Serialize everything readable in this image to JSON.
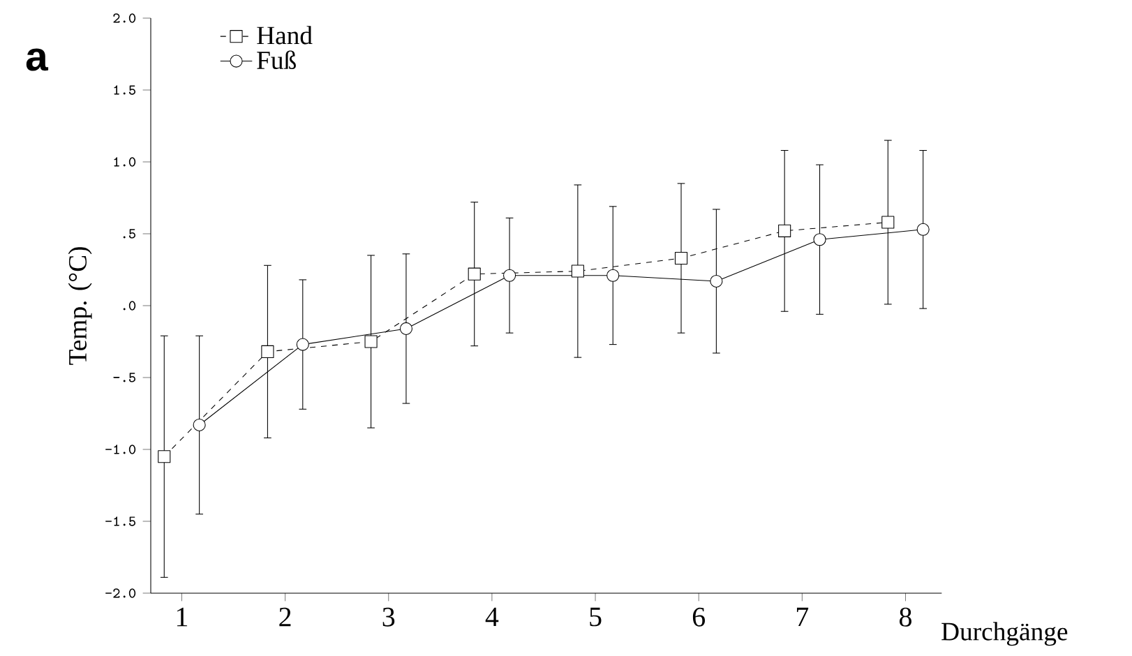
{
  "chart_data": {
    "type": "line",
    "xlabel": "Durchgänge",
    "ylabel": "Temp. (°C)",
    "annotations": [
      "a"
    ],
    "xlim": [
      0.7,
      8.35
    ],
    "ylim": [
      -2.0,
      2.0
    ],
    "xticks": [
      1,
      2,
      3,
      4,
      5,
      6,
      7,
      8
    ],
    "yticks": [
      {
        "value": -2.0,
        "label": "-2.0"
      },
      {
        "value": -1.5,
        "label": "-1.5"
      },
      {
        "value": -1.0,
        "label": "-1.0"
      },
      {
        "value": -0.5,
        "label": "-.5"
      },
      {
        "value": 0.0,
        "label": ".0"
      },
      {
        "value": 0.5,
        "label": ".5"
      },
      {
        "value": 1.0,
        "label": "1.0"
      },
      {
        "value": 1.5,
        "label": "1.5"
      },
      {
        "value": 2.0,
        "label": "2.0"
      }
    ],
    "legend": "top left",
    "series": [
      {
        "name": "Hand",
        "color": "#000000",
        "marker": "square",
        "line_style": "dashed",
        "x": [
          0.83,
          1.83,
          2.83,
          3.83,
          4.83,
          5.83,
          6.83,
          7.83
        ],
        "values": [
          -1.05,
          -0.32,
          -0.25,
          0.22,
          0.24,
          0.33,
          0.52,
          0.58
        ],
        "errors": [
          0.84,
          0.6,
          0.6,
          0.5,
          0.6,
          0.52,
          0.56,
          0.57
        ]
      },
      {
        "name": "Fuß",
        "color": "#000000",
        "marker": "circle",
        "line_style": "solid",
        "x": [
          1.17,
          2.17,
          3.17,
          4.17,
          5.17,
          6.17,
          7.17,
          8.17
        ],
        "values": [
          -0.83,
          -0.27,
          -0.16,
          0.21,
          0.21,
          0.17,
          0.46,
          0.53
        ],
        "errors": [
          0.62,
          0.45,
          0.52,
          0.4,
          0.48,
          0.5,
          0.52,
          0.55
        ]
      }
    ]
  }
}
